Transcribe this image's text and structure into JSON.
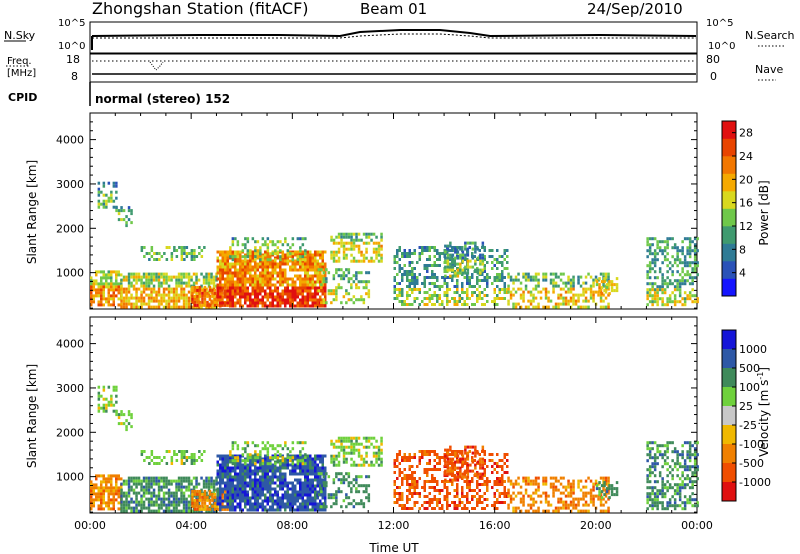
{
  "header": {
    "title": "Zhongshan Station (fitACF)",
    "beam": "Beam 01",
    "date": "24/Sep/2010"
  },
  "status_panels": {
    "nsky_label": "N.Sky",
    "nsky_ticks": [
      "10^5",
      "10^0"
    ],
    "nsearch_label": "N.Search",
    "nsearch_ticks": [
      "10^5",
      "10^0"
    ],
    "freq_label_1": "Freq.",
    "freq_label_2": "[MHz]",
    "freq_ticks": [
      "18",
      "8"
    ],
    "nave_label": "Nave",
    "nave_ticks": [
      "80",
      "0"
    ],
    "cpid_label": "CPID",
    "cpid_value": "normal (stereo) 152"
  },
  "chart_data": [
    {
      "type": "heatmap",
      "title": "",
      "quantity": "Power",
      "xlabel": "Time UT",
      "ylabel": "Slant Range [km]",
      "x_ticks": [
        "00:00",
        "04:00",
        "08:00",
        "12:00",
        "16:00",
        "20:00",
        "00:00"
      ],
      "x_range_hours": [
        0,
        24
      ],
      "y_ticks": [
        1000,
        2000,
        3000,
        4000
      ],
      "y_range_km": [
        180,
        4600
      ],
      "colorbar": {
        "label": "Power [dB]",
        "ticks": [
          4,
          8,
          12,
          16,
          20,
          24,
          28
        ],
        "range": [
          0,
          30
        ],
        "colors": [
          "#1515ff",
          "#2a52b8",
          "#2f7b95",
          "#3f9a6f",
          "#6fc84a",
          "#d8d81e",
          "#f5a900",
          "#f27700",
          "#e84400",
          "#e01010"
        ]
      },
      "echo_regions": [
        {
          "t": [
            0.0,
            1.2
          ],
          "r": [
            300,
            1050
          ],
          "level": 16,
          "density": 0.75
        },
        {
          "t": [
            0.3,
            1.0
          ],
          "r": [
            2450,
            3050
          ],
          "level": 6,
          "density": 0.45
        },
        {
          "t": [
            1.0,
            1.6
          ],
          "r": [
            2000,
            2500
          ],
          "level": 6,
          "density": 0.35
        },
        {
          "t": [
            1.2,
            5.0
          ],
          "r": [
            250,
            1000
          ],
          "level": 14,
          "density": 0.75
        },
        {
          "t": [
            2.0,
            4.5
          ],
          "r": [
            1300,
            1600
          ],
          "level": 7,
          "density": 0.4
        },
        {
          "t": [
            4.0,
            5.5
          ],
          "r": [
            250,
            700
          ],
          "level": 18,
          "density": 0.7
        },
        {
          "t": [
            5.0,
            9.3
          ],
          "r": [
            250,
            1500
          ],
          "level": 22,
          "density": 0.85
        },
        {
          "t": [
            5.5,
            8.5
          ],
          "r": [
            1300,
            1800
          ],
          "level": 8,
          "density": 0.45
        },
        {
          "t": [
            9.5,
            11.5
          ],
          "r": [
            1250,
            1900
          ],
          "level": 11,
          "density": 0.6
        },
        {
          "t": [
            9.0,
            11.0
          ],
          "r": [
            350,
            1100
          ],
          "level": 10,
          "density": 0.4
        },
        {
          "t": [
            12.0,
            16.5
          ],
          "r": [
            250,
            1600
          ],
          "level": 9,
          "density": 0.45
        },
        {
          "t": [
            14.0,
            15.5
          ],
          "r": [
            900,
            1700
          ],
          "level": 8,
          "density": 0.5
        },
        {
          "t": [
            16.5,
            20.5
          ],
          "r": [
            250,
            1000
          ],
          "level": 12,
          "density": 0.5
        },
        {
          "t": [
            20.0,
            20.8
          ],
          "r": [
            500,
            900
          ],
          "level": 12,
          "density": 0.5
        },
        {
          "t": [
            22.0,
            24.0
          ],
          "r": [
            250,
            1800
          ],
          "level": 10,
          "density": 0.5
        }
      ]
    },
    {
      "type": "heatmap",
      "title": "",
      "quantity": "Velocity",
      "xlabel": "Time UT",
      "ylabel": "Slant Range [km]",
      "x_ticks": [
        "00:00",
        "04:00",
        "08:00",
        "12:00",
        "16:00",
        "20:00",
        "00:00"
      ],
      "x_range_hours": [
        0,
        24
      ],
      "y_ticks": [
        1000,
        2000,
        3000,
        4000
      ],
      "y_range_km": [
        180,
        4600
      ],
      "colorbar": {
        "label": "Velocity [m s^-1]",
        "ticks": [
          "1000",
          "500",
          "100",
          "25",
          "-25",
          "-100",
          "-500",
          "-1000"
        ],
        "colors": [
          "#1515d8",
          "#2e58a6",
          "#3f8a5a",
          "#6fd13c",
          "#c8c8c8",
          "#f0b800",
          "#f08000",
          "#f04e00",
          "#e01010"
        ]
      },
      "echo_regions": [
        {
          "t": [
            0.0,
            1.2
          ],
          "r": [
            300,
            1050
          ],
          "category": "-100",
          "density": 0.75
        },
        {
          "t": [
            0.3,
            1.0
          ],
          "r": [
            2450,
            3050
          ],
          "category": "25",
          "density": 0.45
        },
        {
          "t": [
            1.0,
            1.6
          ],
          "r": [
            2000,
            2500
          ],
          "category": "25",
          "density": 0.35
        },
        {
          "t": [
            1.2,
            5.0
          ],
          "r": [
            250,
            1000
          ],
          "category": "100",
          "density": 0.75
        },
        {
          "t": [
            2.0,
            4.5
          ],
          "r": [
            1300,
            1600
          ],
          "category": "25",
          "density": 0.4
        },
        {
          "t": [
            4.0,
            5.5
          ],
          "r": [
            250,
            700
          ],
          "category": "-100",
          "density": 0.7
        },
        {
          "t": [
            5.0,
            9.3
          ],
          "r": [
            250,
            1500
          ],
          "category": "500",
          "density": 0.85
        },
        {
          "t": [
            5.5,
            8.5
          ],
          "r": [
            1300,
            1800
          ],
          "category": "25",
          "density": 0.45
        },
        {
          "t": [
            9.5,
            11.5
          ],
          "r": [
            1250,
            1900
          ],
          "category": "25",
          "density": 0.6
        },
        {
          "t": [
            9.0,
            11.0
          ],
          "r": [
            350,
            1100
          ],
          "category": "100",
          "density": 0.4
        },
        {
          "t": [
            12.0,
            16.5
          ],
          "r": [
            250,
            1600
          ],
          "category": "-500",
          "density": 0.45
        },
        {
          "t": [
            14.0,
            15.5
          ],
          "r": [
            900,
            1700
          ],
          "category": "-500",
          "density": 0.5
        },
        {
          "t": [
            16.5,
            20.5
          ],
          "r": [
            250,
            1000
          ],
          "category": "-100",
          "density": 0.5
        },
        {
          "t": [
            20.0,
            20.8
          ],
          "r": [
            500,
            900
          ],
          "category": "100",
          "density": 0.5
        },
        {
          "t": [
            22.0,
            24.0
          ],
          "r": [
            250,
            1800
          ],
          "category": "100",
          "density": 0.5
        }
      ]
    }
  ]
}
